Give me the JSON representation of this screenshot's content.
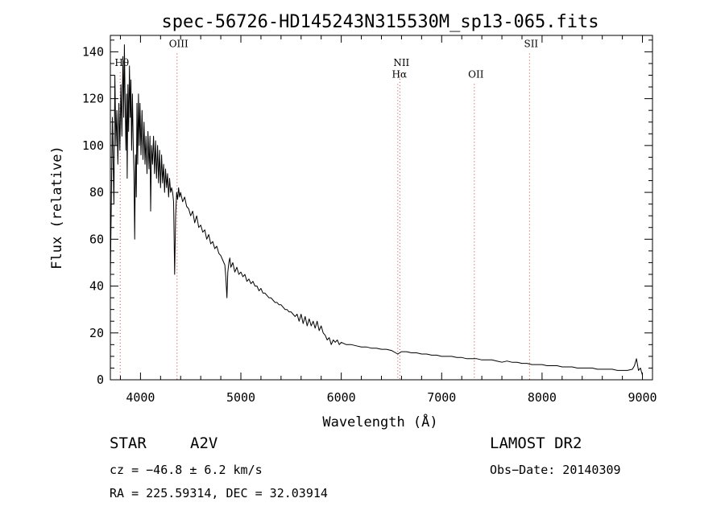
{
  "chart_data": {
    "type": "line",
    "title": "spec-56726-HD145243N315530M_sp13-065.fits",
    "xlabel": "Wavelength (Å)",
    "ylabel": "Flux (relative)",
    "xlim": [
      3700,
      9100
    ],
    "ylim": [
      0,
      147
    ],
    "xticks": [
      4000,
      5000,
      6000,
      7000,
      8000,
      9000
    ],
    "yticks": [
      0,
      20,
      40,
      60,
      80,
      100,
      120,
      140
    ],
    "grid": false,
    "line_color": "#000000",
    "marker_color": "#c04040",
    "series": [
      {
        "points": [
          [
            3700,
            44
          ],
          [
            3720,
            112
          ],
          [
            3735,
            75
          ],
          [
            3745,
            130
          ],
          [
            3755,
            100
          ],
          [
            3765,
            115
          ],
          [
            3775,
            92
          ],
          [
            3785,
            118
          ],
          [
            3795,
            98
          ],
          [
            3805,
            126
          ],
          [
            3815,
            104
          ],
          [
            3825,
            138
          ],
          [
            3833,
            112
          ],
          [
            3840,
            143
          ],
          [
            3848,
            118
          ],
          [
            3855,
            98
          ],
          [
            3862,
            122
          ],
          [
            3868,
            86
          ],
          [
            3875,
            126
          ],
          [
            3882,
            106
          ],
          [
            3890,
            134
          ],
          [
            3898,
            112
          ],
          [
            3905,
            128
          ],
          [
            3912,
            98
          ],
          [
            3920,
            122
          ],
          [
            3928,
            100
          ],
          [
            3935,
            88
          ],
          [
            3942,
            60
          ],
          [
            3950,
            96
          ],
          [
            3958,
            78
          ],
          [
            3965,
            118
          ],
          [
            3972,
            92
          ],
          [
            3980,
            122
          ],
          [
            3988,
            100
          ],
          [
            3995,
            118
          ],
          [
            4005,
            96
          ],
          [
            4015,
            115
          ],
          [
            4025,
            94
          ],
          [
            4035,
            110
          ],
          [
            4045,
            92
          ],
          [
            4055,
            104
          ],
          [
            4065,
            88
          ],
          [
            4075,
            106
          ],
          [
            4085,
            90
          ],
          [
            4095,
            104
          ],
          [
            4101,
            72
          ],
          [
            4110,
            100
          ],
          [
            4120,
            92
          ],
          [
            4130,
            104
          ],
          [
            4140,
            88
          ],
          [
            4150,
            102
          ],
          [
            4160,
            86
          ],
          [
            4170,
            100
          ],
          [
            4180,
            84
          ],
          [
            4190,
            98
          ],
          [
            4200,
            82
          ],
          [
            4210,
            96
          ],
          [
            4220,
            84
          ],
          [
            4230,
            92
          ],
          [
            4240,
            80
          ],
          [
            4250,
            90
          ],
          [
            4260,
            82
          ],
          [
            4270,
            88
          ],
          [
            4280,
            78
          ],
          [
            4290,
            86
          ],
          [
            4300,
            80
          ],
          [
            4310,
            82
          ],
          [
            4320,
            80
          ],
          [
            4330,
            76
          ],
          [
            4340,
            45
          ],
          [
            4350,
            70
          ],
          [
            4360,
            80
          ],
          [
            4370,
            77
          ],
          [
            4380,
            82
          ],
          [
            4390,
            78
          ],
          [
            4400,
            80
          ],
          [
            4420,
            76
          ],
          [
            4440,
            78
          ],
          [
            4460,
            74
          ],
          [
            4480,
            73
          ],
          [
            4500,
            70
          ],
          [
            4520,
            72
          ],
          [
            4540,
            67
          ],
          [
            4560,
            70
          ],
          [
            4580,
            65
          ],
          [
            4600,
            66
          ],
          [
            4620,
            63
          ],
          [
            4640,
            64
          ],
          [
            4660,
            60
          ],
          [
            4680,
            62
          ],
          [
            4700,
            58
          ],
          [
            4720,
            59
          ],
          [
            4740,
            56
          ],
          [
            4760,
            57
          ],
          [
            4780,
            54
          ],
          [
            4800,
            53
          ],
          [
            4820,
            51
          ],
          [
            4840,
            49
          ],
          [
            4850,
            44
          ],
          [
            4861,
            35
          ],
          [
            4870,
            46
          ],
          [
            4880,
            50
          ],
          [
            4890,
            52
          ],
          [
            4900,
            48
          ],
          [
            4920,
            50
          ],
          [
            4940,
            46
          ],
          [
            4960,
            48
          ],
          [
            4980,
            45
          ],
          [
            5000,
            46
          ],
          [
            5020,
            44
          ],
          [
            5040,
            45
          ],
          [
            5060,
            42
          ],
          [
            5080,
            43
          ],
          [
            5100,
            41
          ],
          [
            5120,
            42
          ],
          [
            5140,
            40
          ],
          [
            5160,
            40
          ],
          [
            5180,
            38
          ],
          [
            5200,
            39
          ],
          [
            5220,
            37
          ],
          [
            5240,
            37
          ],
          [
            5260,
            36
          ],
          [
            5280,
            35
          ],
          [
            5300,
            35
          ],
          [
            5320,
            34
          ],
          [
            5340,
            33
          ],
          [
            5360,
            33
          ],
          [
            5380,
            32
          ],
          [
            5400,
            32
          ],
          [
            5420,
            31
          ],
          [
            5440,
            30
          ],
          [
            5460,
            30
          ],
          [
            5480,
            29
          ],
          [
            5500,
            29
          ],
          [
            5520,
            28
          ],
          [
            5540,
            27
          ],
          [
            5560,
            28
          ],
          [
            5580,
            25
          ],
          [
            5600,
            28
          ],
          [
            5620,
            24
          ],
          [
            5640,
            27
          ],
          [
            5660,
            23
          ],
          [
            5680,
            26
          ],
          [
            5700,
            23
          ],
          [
            5720,
            25
          ],
          [
            5740,
            22
          ],
          [
            5760,
            25
          ],
          [
            5780,
            21
          ],
          [
            5800,
            23
          ],
          [
            5820,
            20
          ],
          [
            5840,
            19
          ],
          [
            5860,
            17
          ],
          [
            5880,
            18
          ],
          [
            5900,
            15
          ],
          [
            5920,
            17
          ],
          [
            5940,
            16
          ],
          [
            5960,
            17
          ],
          [
            5980,
            15
          ],
          [
            6000,
            16
          ],
          [
            6050,
            15
          ],
          [
            6100,
            15
          ],
          [
            6150,
            14.5
          ],
          [
            6200,
            14
          ],
          [
            6250,
            14
          ],
          [
            6300,
            13.5
          ],
          [
            6350,
            13.5
          ],
          [
            6400,
            13
          ],
          [
            6450,
            13
          ],
          [
            6500,
            12.5
          ],
          [
            6563,
            11
          ],
          [
            6600,
            12
          ],
          [
            6650,
            12
          ],
          [
            6700,
            11.5
          ],
          [
            6750,
            11.5
          ],
          [
            6800,
            11
          ],
          [
            6850,
            11
          ],
          [
            6900,
            10.5
          ],
          [
            6950,
            10.5
          ],
          [
            7000,
            10
          ],
          [
            7050,
            10
          ],
          [
            7100,
            10
          ],
          [
            7150,
            9.5
          ],
          [
            7200,
            9.5
          ],
          [
            7250,
            9
          ],
          [
            7300,
            9
          ],
          [
            7350,
            9
          ],
          [
            7400,
            8.5
          ],
          [
            7450,
            8.5
          ],
          [
            7500,
            8.5
          ],
          [
            7550,
            8
          ],
          [
            7600,
            7.5
          ],
          [
            7650,
            8
          ],
          [
            7700,
            7.5
          ],
          [
            7750,
            7.5
          ],
          [
            7800,
            7
          ],
          [
            7850,
            7
          ],
          [
            7900,
            6.5
          ],
          [
            7950,
            6.5
          ],
          [
            8000,
            6.5
          ],
          [
            8050,
            6
          ],
          [
            8100,
            6
          ],
          [
            8150,
            6
          ],
          [
            8200,
            5.5
          ],
          [
            8250,
            5.5
          ],
          [
            8300,
            5.5
          ],
          [
            8350,
            5
          ],
          [
            8400,
            5
          ],
          [
            8450,
            5
          ],
          [
            8500,
            5
          ],
          [
            8550,
            4.5
          ],
          [
            8600,
            4.5
          ],
          [
            8650,
            4.5
          ],
          [
            8700,
            4.5
          ],
          [
            8750,
            4
          ],
          [
            8800,
            4
          ],
          [
            8850,
            4
          ],
          [
            8900,
            4.5
          ],
          [
            8920,
            6
          ],
          [
            8940,
            9
          ],
          [
            8960,
            4
          ],
          [
            8980,
            5
          ],
          [
            9000,
            2
          ]
        ]
      }
    ],
    "annotations": [
      {
        "label": "Hθ",
        "x": 3798,
        "y_label": 134
      },
      {
        "label": "OIII",
        "x": 4364,
        "y_label": 142
      },
      {
        "label": "NII",
        "x": 6583,
        "y_label": 134
      },
      {
        "label": "Hα",
        "x": 6563,
        "y_label": 129
      },
      {
        "label": "OII",
        "x": 7325,
        "y_label": 129
      },
      {
        "label": "SII",
        "x": 7875,
        "y_label": 142
      }
    ]
  },
  "info": {
    "object_type": "STAR",
    "subclass": "A2V",
    "survey": "LAMOST DR2",
    "cz": "cz = −46.8 ± 6.2 km/s",
    "obs_date": "Obs−Date: 20140309",
    "coords": "RA = 225.59314, DEC =  32.03914"
  }
}
